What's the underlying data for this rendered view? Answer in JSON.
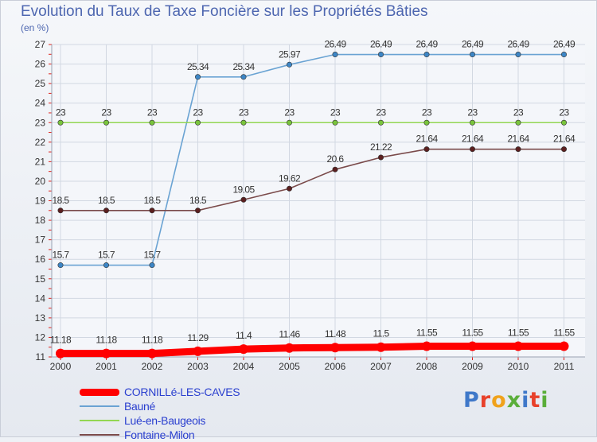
{
  "header": {
    "title": "Evolution du Taux de Taxe Foncière sur les Propriétés Bâties",
    "unit": "(en %)"
  },
  "logo": {
    "text": "Proxiti"
  },
  "colors": {
    "title": "#4d66b0",
    "axis_tick": "#e0211c",
    "grid": "#d2d8e2",
    "legend_text": "#2a3fcf"
  },
  "chart_data": {
    "type": "line",
    "title": "Evolution du Taux de Taxe Foncière sur les Propriétés Bâties",
    "ylabel": "(en %)",
    "xlabel": "",
    "categories": [
      "2000",
      "2001",
      "2002",
      "2003",
      "2004",
      "2005",
      "2006",
      "2007",
      "2008",
      "2009",
      "2010",
      "2011"
    ],
    "ylim": [
      11,
      27
    ],
    "yticks": [
      "11",
      "12",
      "13",
      "14",
      "15",
      "16",
      "17",
      "18",
      "19",
      "20",
      "21",
      "22",
      "23",
      "24",
      "25",
      "26",
      "27"
    ],
    "legend_position": "bottom-left",
    "series": [
      {
        "name": "Bauné",
        "color": "#6aa3d3",
        "dot": "#3d86c6",
        "values": [
          15.7,
          15.7,
          15.7,
          25.34,
          25.34,
          25.97,
          26.49,
          26.49,
          26.49,
          26.49,
          26.49,
          26.49
        ],
        "labels": [
          "15.7",
          "15.7",
          "15.7",
          "25.34",
          "25.34",
          "25.97",
          "26.49",
          "26.49",
          "26.49",
          "26.49",
          "26.49",
          "26.49"
        ]
      },
      {
        "name": "Lué-en-Baugeois",
        "color": "#93d653",
        "dot": "#79c43c",
        "values": [
          23,
          23,
          23,
          23,
          23,
          23,
          23,
          23,
          23,
          23,
          23,
          23
        ],
        "labels": [
          "23",
          "23",
          "23",
          "23",
          "23",
          "23",
          "23",
          "23",
          "23",
          "23",
          "23",
          "23"
        ]
      },
      {
        "name": "Fontaine-Milon",
        "color": "#7a4a4a",
        "dot": "#5b1f1f",
        "values": [
          18.5,
          18.5,
          18.5,
          18.5,
          19.05,
          19.62,
          20.6,
          21.22,
          21.64,
          21.64,
          21.64,
          21.64
        ],
        "labels": [
          "18.5",
          "18.5",
          "18.5",
          "18.5",
          "19.05",
          "19.62",
          "20.6",
          "21.22",
          "21.64",
          "21.64",
          "21.64",
          "21.64"
        ]
      },
      {
        "name": "CORNILLé-LES-CAVES",
        "color": "#ff0000",
        "dot": "#ff0000",
        "thick": true,
        "values": [
          11.18,
          11.18,
          11.18,
          11.29,
          11.4,
          11.46,
          11.48,
          11.5,
          11.55,
          11.55,
          11.55,
          11.55
        ],
        "labels": [
          "11.18",
          "11.18",
          "11.18",
          "11.29",
          "11.4",
          "11.46",
          "11.48",
          "11.5",
          "11.55",
          "11.55",
          "11.55",
          "11.55"
        ]
      }
    ],
    "legend_order": [
      "CORNILLé-LES-CAVES",
      "Bauné",
      "Lué-en-Baugeois",
      "Fontaine-Milon"
    ]
  }
}
